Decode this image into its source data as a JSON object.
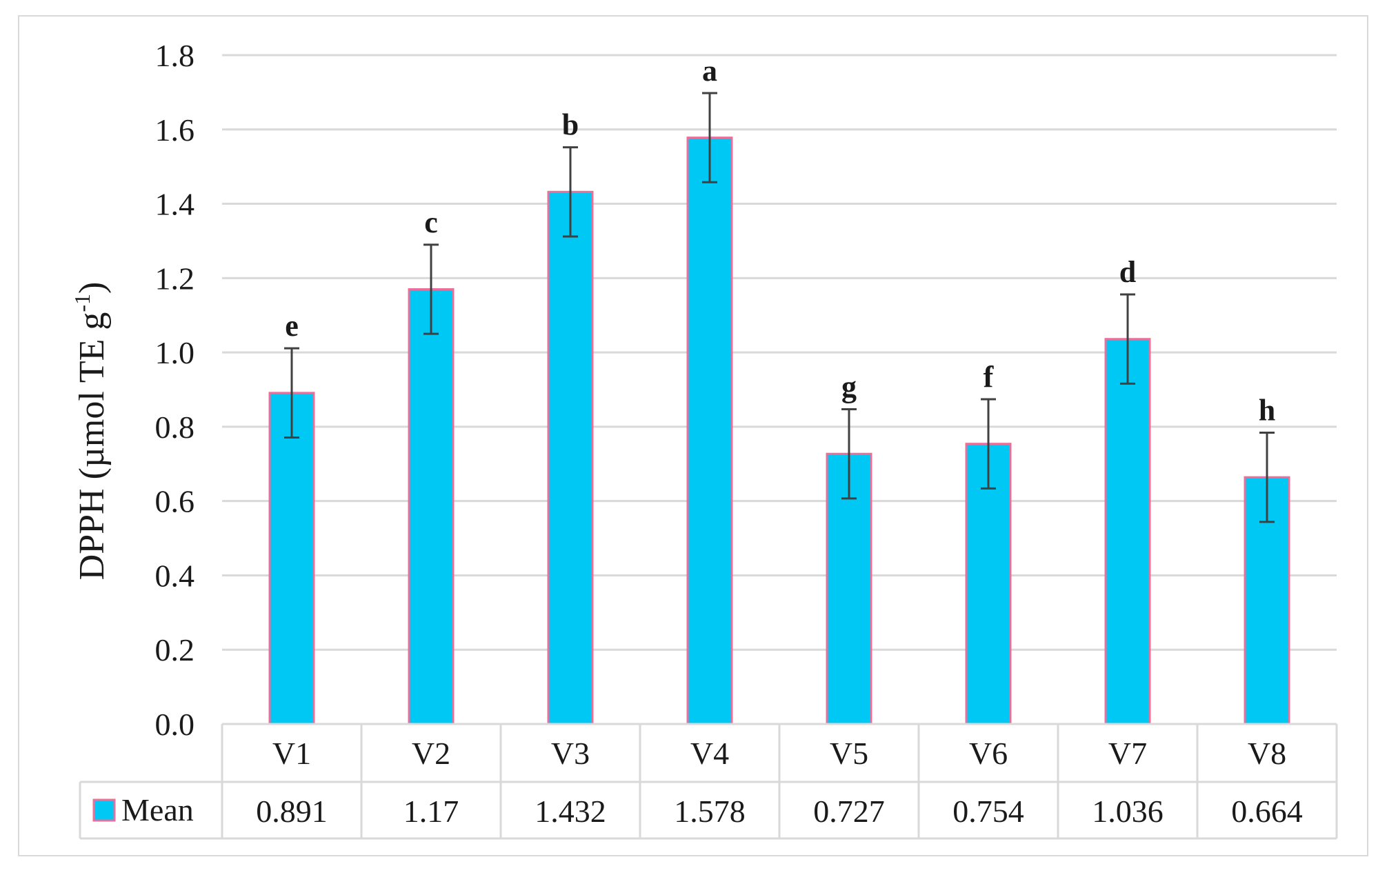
{
  "chart_data": {
    "type": "bar",
    "title": "",
    "xlabel": "",
    "ylabel": "DPPH (µmol TE g",
    "ylabel_sup": "-1",
    "ylabel_close": ")",
    "ylim": [
      0,
      1.8
    ],
    "yticks": [
      "0.0",
      "0.2",
      "0.4",
      "0.6",
      "0.8",
      "1.0",
      "1.2",
      "1.4",
      "1.6",
      "1.8"
    ],
    "grid": true,
    "categories": [
      "V1",
      "V2",
      "V3",
      "V4",
      "V5",
      "V6",
      "V7",
      "V8"
    ],
    "series": [
      {
        "name": "Mean",
        "values": [
          0.891,
          1.17,
          1.432,
          1.578,
          0.727,
          0.754,
          1.036,
          0.664
        ],
        "value_labels": [
          "0.891",
          "1.17",
          "1.432",
          "1.578",
          "0.727",
          "0.754",
          "1.036",
          "0.664"
        ],
        "error": [
          0.12,
          0.12,
          0.12,
          0.12,
          0.12,
          0.12,
          0.12,
          0.12
        ],
        "significance": [
          "e",
          "c",
          "b",
          "a",
          "g",
          "f",
          "d",
          "h"
        ]
      }
    ],
    "legend_placement": "data-table",
    "colors": {
      "bar_fill": "#00c8f5",
      "bar_stroke": "#e8709a",
      "grid": "#d9d9d9",
      "error": "#404040"
    }
  }
}
